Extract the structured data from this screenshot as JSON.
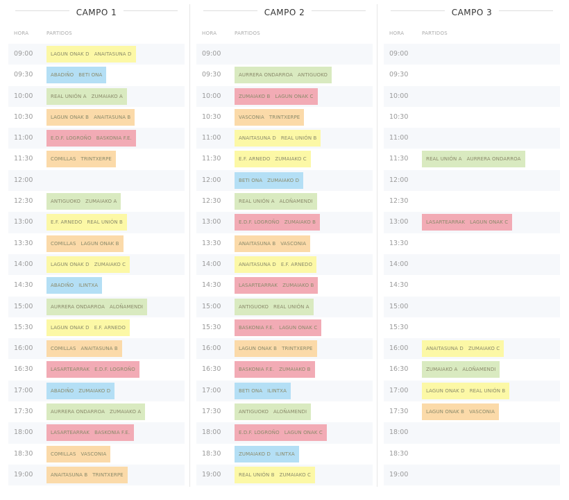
{
  "headers": {
    "hora": "HORA",
    "partidos": "PARTIDOS"
  },
  "colors": {
    "yellow": "#fcf8a6",
    "blue": "#b4dff5",
    "green": "#d9eac0",
    "orange": "#fbdaa9",
    "red": "#f2abb5"
  },
  "campos": [
    {
      "title": "CAMPO 1",
      "rows": [
        {
          "hora": "09:00",
          "home": "LAGUN ONAK D",
          "away": "ANAITASUNA D",
          "color": "yellow"
        },
        {
          "hora": "09:30",
          "home": "ABADIÑO",
          "away": "BETI ONA",
          "color": "blue"
        },
        {
          "hora": "10:00",
          "home": "REAL UNIÓN A",
          "away": "ZUMAIAKO A",
          "color": "green"
        },
        {
          "hora": "10:30",
          "home": "LAGUN ONAK B",
          "away": "ANAITASUNA B",
          "color": "orange"
        },
        {
          "hora": "11:00",
          "home": "E.D.F. LOGROÑO",
          "away": "BASKONIA F.E.",
          "color": "red"
        },
        {
          "hora": "11:30",
          "home": "COMILLAS",
          "away": "TRINTXERPE",
          "color": "orange"
        },
        {
          "hora": "12:00"
        },
        {
          "hora": "12:30",
          "home": "ANTIGUOKO",
          "away": "ZUMAIAKO A",
          "color": "green"
        },
        {
          "hora": "13:00",
          "home": "E.F. ARNEDO",
          "away": "REAL UNIÓN B",
          "color": "yellow"
        },
        {
          "hora": "13:30",
          "home": "COMILLAS",
          "away": "LAGUN ONAK B",
          "color": "orange"
        },
        {
          "hora": "14:00",
          "home": "LAGUN ONAK D",
          "away": "ZUMAIAKO C",
          "color": "yellow"
        },
        {
          "hora": "14:30",
          "home": "ABADIÑO",
          "away": "ILINTXA",
          "color": "blue"
        },
        {
          "hora": "15:00",
          "home": "AURRERA ONDARROA",
          "away": "ALOÑAMENDI",
          "color": "green"
        },
        {
          "hora": "15:30",
          "home": "LAGUN ONAK D",
          "away": "E.F. ARNEDO",
          "color": "yellow"
        },
        {
          "hora": "16:00",
          "home": "COMILLAS",
          "away": "ANAITASUNA B",
          "color": "orange"
        },
        {
          "hora": "16:30",
          "home": "LASARTEARRAK",
          "away": "E.D.F. LOGROÑO",
          "color": "red"
        },
        {
          "hora": "17:00",
          "home": "ABADIÑO",
          "away": "ZUMAIAKO D",
          "color": "blue"
        },
        {
          "hora": "17:30",
          "home": "AURRERA ONDARROA",
          "away": "ZUMAIAKO A",
          "color": "green"
        },
        {
          "hora": "18:00",
          "home": "LASARTEARRAK",
          "away": "BASKONIA F.E.",
          "color": "red"
        },
        {
          "hora": "18:30",
          "home": "COMILLAS",
          "away": "VASCONIA",
          "color": "orange"
        },
        {
          "hora": "19:00",
          "home": "ANAITASUNA B",
          "away": "TRINTXERPE",
          "color": "orange"
        }
      ]
    },
    {
      "title": "CAMPO 2",
      "rows": [
        {
          "hora": "09:00"
        },
        {
          "hora": "09:30",
          "home": "AURRERA ONDARROA",
          "away": "ANTIGUOKO",
          "color": "green"
        },
        {
          "hora": "10:00",
          "home": "ZUMAIAKO B",
          "away": "LAGUN ONAK C",
          "color": "red"
        },
        {
          "hora": "10:30",
          "home": "VASCONIA",
          "away": "TRINTXERPE",
          "color": "orange"
        },
        {
          "hora": "11:00",
          "home": "ANAITASUNA D",
          "away": "REAL UNIÓN B",
          "color": "yellow"
        },
        {
          "hora": "11:30",
          "home": "E.F. ARNEDO",
          "away": "ZUMAIAKO C",
          "color": "yellow"
        },
        {
          "hora": "12:00",
          "home": "BETI ONA",
          "away": "ZUMAIAKO D",
          "color": "blue"
        },
        {
          "hora": "12:30",
          "home": "REAL UNIÓN A",
          "away": "ALOÑAMENDI",
          "color": "green"
        },
        {
          "hora": "13:00",
          "home": "E.D.F. LOGROÑO",
          "away": "ZUMAIAKO B",
          "color": "red"
        },
        {
          "hora": "13:30",
          "home": "ANAITASUNA B",
          "away": "VASCONIA",
          "color": "orange"
        },
        {
          "hora": "14:00",
          "home": "ANAITASUNA D",
          "away": "E.F. ARNEDO",
          "color": "yellow"
        },
        {
          "hora": "14:30",
          "home": "LASARTEARRAK",
          "away": "ZUMAIAKO B",
          "color": "red"
        },
        {
          "hora": "15:00",
          "home": "ANTIGUOKO",
          "away": "REAL UNIÓN A",
          "color": "green"
        },
        {
          "hora": "15:30",
          "home": "BASKONIA F.E.",
          "away": "LAGUN ONAK C",
          "color": "red"
        },
        {
          "hora": "16:00",
          "home": "LAGUN ONAK B",
          "away": "TRINTXERPE",
          "color": "orange"
        },
        {
          "hora": "16:30",
          "home": "BASKONIA F.E.",
          "away": "ZUMAIAKO B",
          "color": "red"
        },
        {
          "hora": "17:00",
          "home": "BETI ONA",
          "away": "ILINTXA",
          "color": "blue"
        },
        {
          "hora": "17:30",
          "home": "ANTIGUOKO",
          "away": "ALOÑAMENDI",
          "color": "green"
        },
        {
          "hora": "18:00",
          "home": "E.D.F. LOGROÑO",
          "away": "LAGUN ONAK C",
          "color": "red"
        },
        {
          "hora": "18:30",
          "home": "ZUMAIAKO D",
          "away": "ILINTXA",
          "color": "blue"
        },
        {
          "hora": "19:00",
          "home": "REAL UNIÓN B",
          "away": "ZUMAIAKO C",
          "color": "yellow"
        }
      ]
    },
    {
      "title": "CAMPO 3",
      "rows": [
        {
          "hora": "09:00"
        },
        {
          "hora": "09:30"
        },
        {
          "hora": "10:00"
        },
        {
          "hora": "10:30"
        },
        {
          "hora": "11:00"
        },
        {
          "hora": "11:30",
          "home": "REAL UNIÓN A",
          "away": "AURRERA ONDARROA",
          "color": "green"
        },
        {
          "hora": "12:00"
        },
        {
          "hora": "12:30"
        },
        {
          "hora": "13:00",
          "home": "LASARTEARRAK",
          "away": "LAGUN ONAK C",
          "color": "red"
        },
        {
          "hora": "13:30"
        },
        {
          "hora": "14:00"
        },
        {
          "hora": "14:30"
        },
        {
          "hora": "15:00"
        },
        {
          "hora": "15:30"
        },
        {
          "hora": "16:00",
          "home": "ANAITASUNA D",
          "away": "ZUMAIAKO C",
          "color": "yellow"
        },
        {
          "hora": "16:30",
          "home": "ZUMAIAKO A",
          "away": "ALOÑAMENDI",
          "color": "green"
        },
        {
          "hora": "17:00",
          "home": "LAGUN ONAK D",
          "away": "REAL UNIÓN B",
          "color": "yellow"
        },
        {
          "hora": "17:30",
          "home": "LAGUN ONAK B",
          "away": "VASCONIA",
          "color": "orange"
        },
        {
          "hora": "18:00"
        },
        {
          "hora": "18:30"
        },
        {
          "hora": "19:00"
        }
      ]
    }
  ]
}
